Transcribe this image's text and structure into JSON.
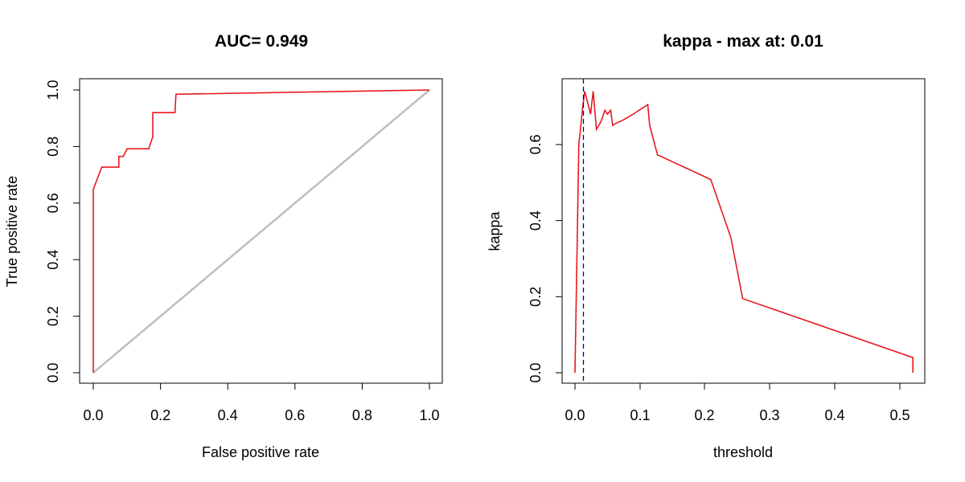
{
  "chart_data": [
    {
      "type": "line",
      "title": "AUC= 0.949",
      "xlabel": "False positive rate",
      "ylabel": "True positive rate",
      "xlim": [
        0,
        1
      ],
      "ylim": [
        0,
        1
      ],
      "xticks": [
        "0.0",
        "0.2",
        "0.4",
        "0.6",
        "0.8",
        "1.0"
      ],
      "yticks": [
        "0.0",
        "0.2",
        "0.4",
        "0.6",
        "0.8",
        "1.0"
      ],
      "grid": false,
      "series": [
        {
          "color": "#e8191f",
          "x": [
            0.0,
            0.0,
            0.0,
            0.0,
            0.025,
            0.076,
            0.076,
            0.089,
            0.101,
            0.165,
            0.177,
            0.177,
            0.243,
            0.246,
            0.252,
            1.0
          ],
          "y": [
            0.0,
            0.6,
            0.648,
            0.648,
            0.727,
            0.727,
            0.765,
            0.765,
            0.792,
            0.792,
            0.835,
            0.92,
            0.92,
            0.985,
            0.985,
            1.0
          ]
        },
        {
          "color": "#bebebe",
          "x": [
            0.0,
            1.0
          ],
          "y": [
            0.0,
            1.0
          ]
        }
      ]
    },
    {
      "type": "line",
      "title": "kappa - max at: 0.01",
      "xlabel": "threshold",
      "ylabel": "kappa",
      "xlim": [
        0,
        0.52
      ],
      "ylim": [
        0,
        0.73
      ],
      "xticks": [
        "0.0",
        "0.1",
        "0.2",
        "0.3",
        "0.4",
        "0.5"
      ],
      "yticks": [
        "0.0",
        "0.2",
        "0.4",
        "0.6"
      ],
      "grid": false,
      "vline": {
        "x": 0.013,
        "color": "#00008b",
        "style": "dashed"
      },
      "series": [
        {
          "color": "#e8191f",
          "x": [
            0.0,
            0.006,
            0.009,
            0.012,
            0.015,
            0.018,
            0.021,
            0.024,
            0.028,
            0.033,
            0.04,
            0.046,
            0.05,
            0.055,
            0.058,
            0.062,
            0.075,
            0.09,
            0.112,
            0.115,
            0.127,
            0.209,
            0.24,
            0.258,
            0.52,
            0.52
          ],
          "y": [
            0.0,
            0.6,
            0.65,
            0.7,
            0.74,
            0.72,
            0.7,
            0.68,
            0.74,
            0.64,
            0.66,
            0.69,
            0.68,
            0.69,
            0.65,
            0.655,
            0.665,
            0.68,
            0.705,
            0.65,
            0.573,
            0.508,
            0.355,
            0.195,
            0.04,
            0.0
          ]
        }
      ]
    }
  ]
}
